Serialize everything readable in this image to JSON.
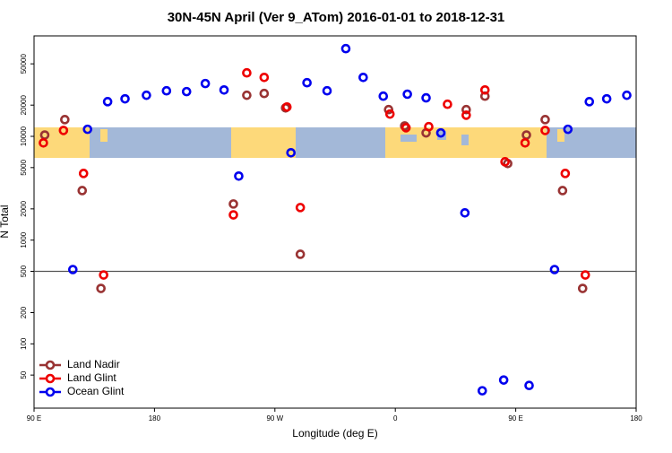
{
  "chart_data": {
    "type": "scatter",
    "title": "30N-45N April (Ver 9_ATom)   2016-01-01 to 2018-12-31",
    "xlabel": "Longitude (deg E)",
    "ylabel": "N Total",
    "xlim": [
      90,
      540
    ],
    "xticks": [
      {
        "value": 90,
        "label": "90 E"
      },
      180,
      {
        "value": 270,
        "label": "90 W"
      },
      {
        "value": 360,
        "label": "0"
      },
      {
        "value": 450,
        "label": "90 E"
      },
      {
        "value": 540,
        "label": "180"
      }
    ],
    "ylim": [
      24,
      93000
    ],
    "log_y": true,
    "yticks": [
      50,
      100,
      200,
      500,
      1000,
      2000,
      5000,
      10000,
      20000,
      50000
    ],
    "reference_line": 500,
    "legend": "lower left",
    "series": [
      {
        "name": "Land Nadir",
        "color": "#993333",
        "x": [
          98,
          113,
          126,
          140,
          239,
          249,
          262,
          278,
          289,
          355,
          367,
          383,
          413,
          427,
          444,
          458,
          472,
          485,
          500
        ],
        "values": [
          10300,
          14500,
          3000,
          342,
          2230,
          24900,
          25900,
          18800,
          730,
          18100,
          12600,
          10800,
          18100,
          24400,
          5470,
          10300,
          14500,
          3000,
          342
        ]
      },
      {
        "name": "Land Glint",
        "color": "#ee0000",
        "x": [
          97,
          112,
          127,
          142,
          239,
          249,
          262,
          279,
          289,
          356,
          368,
          385,
          399,
          413,
          427,
          442,
          457,
          472,
          487,
          502
        ],
        "values": [
          8650,
          11400,
          4390,
          461,
          1750,
          40950,
          37000,
          19200,
          2060,
          16400,
          12100,
          12400,
          20400,
          16000,
          28000,
          5690,
          8650,
          11400,
          4390,
          461
        ]
      },
      {
        "name": "Ocean Glint",
        "color": "#0000ee",
        "x": [
          119,
          130,
          145,
          158,
          174,
          189,
          204,
          218,
          232,
          243,
          282,
          294,
          309,
          323,
          336,
          351,
          369,
          383,
          394,
          412,
          425,
          441,
          460,
          479,
          489,
          505,
          518,
          533
        ],
        "values": [
          520,
          11700,
          21600,
          23000,
          24900,
          27500,
          27000,
          32300,
          28000,
          4140,
          6950,
          32900,
          27500,
          70100,
          37000,
          24400,
          25500,
          23500,
          10800,
          1830,
          35.3,
          44.8,
          39.7,
          520,
          11700,
          21600,
          23000,
          24900
        ]
      }
    ]
  }
}
